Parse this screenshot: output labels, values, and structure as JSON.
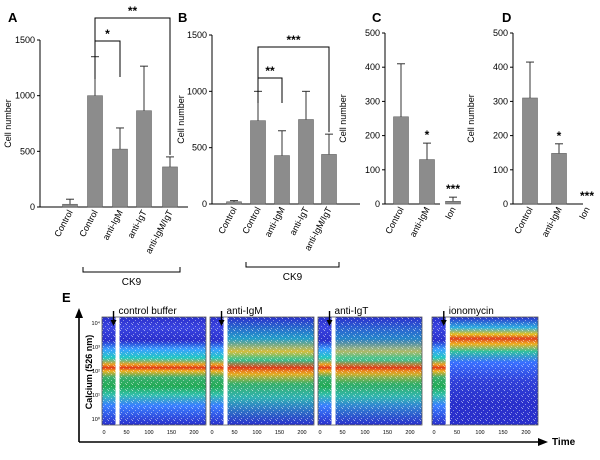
{
  "figure": {
    "colors": {
      "bar": "#8c8c8c",
      "axis": "#000000",
      "flow_bg": "#1e24c8"
    },
    "flow_label": "E",
    "flow_ylabel": "Calcium (526 nm)",
    "flow_xlabel": "Time",
    "flow_xticks": [
      "0",
      "50",
      "100",
      "150",
      "200"
    ],
    "flow_yticks": [
      "10⁰",
      "10¹",
      "10²",
      "10³",
      "10⁴"
    ]
  },
  "chart_data": [
    {
      "panel": "A",
      "type": "bar",
      "ylabel": "Cell number",
      "categories": [
        "Control",
        "Control",
        "anti-IgM",
        "anti-IgT",
        "anti-IgM/IgT"
      ],
      "values": [
        25,
        1000,
        520,
        865,
        360
      ],
      "errors": [
        45,
        350,
        190,
        400,
        90
      ],
      "ylim": [
        0,
        1500
      ],
      "yticks": [
        "0",
        "500",
        "1000",
        "1500"
      ],
      "group": {
        "label": "CK9",
        "from": 1,
        "to": 4
      },
      "significance": [
        {
          "from": 1,
          "to": 2,
          "label": "*"
        },
        {
          "from": 1,
          "to": 4,
          "label": "**"
        }
      ],
      "stars": []
    },
    {
      "panel": "B",
      "type": "bar",
      "ylabel": "Cell number",
      "categories": [
        "Control",
        "Control",
        "anti-IgM",
        "anti-IgT",
        "anti-IgM/IgT"
      ],
      "values": [
        20,
        740,
        430,
        750,
        440
      ],
      "errors": [
        10,
        260,
        220,
        250,
        180
      ],
      "ylim": [
        0,
        1500
      ],
      "yticks": [
        "0",
        "500",
        "1000",
        "1500"
      ],
      "group": {
        "label": "CK9",
        "from": 1,
        "to": 4
      },
      "significance": [
        {
          "from": 1,
          "to": 2,
          "label": "**"
        },
        {
          "from": 1,
          "to": 4,
          "label": "***"
        }
      ],
      "stars": []
    },
    {
      "panel": "C",
      "type": "bar",
      "ylabel": "Cell number",
      "categories": [
        "Control",
        "anti-IgM",
        "Ion"
      ],
      "values": [
        255,
        130,
        8
      ],
      "errors": [
        155,
        48,
        12
      ],
      "ylim": [
        0,
        500
      ],
      "yticks": [
        "0",
        "100",
        "200",
        "300",
        "400",
        "500"
      ],
      "group": null,
      "significance": [],
      "stars": [
        "",
        "*",
        "***"
      ]
    },
    {
      "panel": "D",
      "type": "bar",
      "ylabel": "Cell number",
      "categories": [
        "Control",
        "anti-IgM",
        "Ion"
      ],
      "values": [
        310,
        148,
        0
      ],
      "errors": [
        105,
        28,
        0
      ],
      "ylim": [
        0,
        500
      ],
      "yticks": [
        "0",
        "100",
        "200",
        "300",
        "400",
        "500"
      ],
      "group": null,
      "significance": [],
      "stars": [
        "",
        "*",
        "***"
      ]
    }
  ],
  "flow_panels": [
    {
      "label": "control buffer",
      "type": "control"
    },
    {
      "label": "anti-IgM",
      "type": "igm"
    },
    {
      "label": "anti-IgT",
      "type": "igt"
    },
    {
      "label": "ionomycin",
      "type": "iono"
    }
  ]
}
